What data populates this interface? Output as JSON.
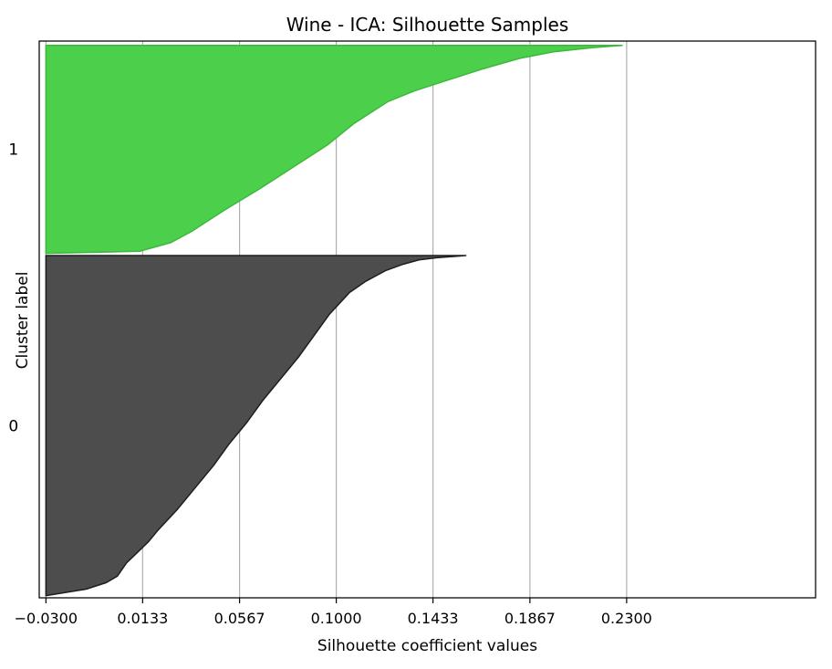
{
  "chart_data": {
    "type": "area",
    "title": "Wine - ICA: Silhouette Samples",
    "xlabel": "Silhouette coefficient values",
    "ylabel": "Cluster label",
    "xlim": [
      -0.033,
      0.3146
    ],
    "ylim": [
      0,
      257
    ],
    "xticks": [
      "−0.0300",
      "0.0133",
      "0.0567",
      "0.1000",
      "0.1433",
      "0.1867",
      "0.2300"
    ],
    "xtick_values": [
      -0.03,
      0.0133,
      0.0567,
      0.1,
      0.1433,
      0.1867,
      0.23
    ],
    "grid": "x",
    "colors": {
      "cluster_0": "#4d4d4d",
      "cluster_1": "#4cd04c",
      "grid": "#b0b0b0"
    },
    "clusters": [
      {
        "label": "0",
        "sample_count": 158,
        "y_range": [
          1,
          158
        ],
        "silhouette_curve": [
          [
            0,
            -0.03
          ],
          [
            3,
            -0.012
          ],
          [
            6,
            -0.003
          ],
          [
            9,
            0.002
          ],
          [
            15,
            0.006
          ],
          [
            20,
            0.011
          ],
          [
            25,
            0.016
          ],
          [
            30,
            0.02
          ],
          [
            40,
            0.029
          ],
          [
            50,
            0.037
          ],
          [
            60,
            0.045
          ],
          [
            70,
            0.052
          ],
          [
            80,
            0.06
          ],
          [
            90,
            0.067
          ],
          [
            100,
            0.075
          ],
          [
            110,
            0.083
          ],
          [
            120,
            0.09
          ],
          [
            130,
            0.097
          ],
          [
            140,
            0.106
          ],
          [
            145,
            0.113
          ],
          [
            150,
            0.122
          ],
          [
            153,
            0.13
          ],
          [
            155,
            0.137
          ],
          [
            156,
            0.145
          ],
          [
            157,
            0.158
          ]
        ]
      },
      {
        "label": "1",
        "sample_count": 96,
        "y_range": [
          159,
          255
        ],
        "silhouette_curve": [
          [
            0,
            -0.03
          ],
          [
            1,
            0.012
          ],
          [
            3,
            0.019
          ],
          [
            5,
            0.026
          ],
          [
            10,
            0.035
          ],
          [
            20,
            0.05
          ],
          [
            30,
            0.066
          ],
          [
            40,
            0.081
          ],
          [
            50,
            0.096
          ],
          [
            60,
            0.108
          ],
          [
            70,
            0.123
          ],
          [
            75,
            0.135
          ],
          [
            80,
            0.15
          ],
          [
            85,
            0.165
          ],
          [
            90,
            0.182
          ],
          [
            93,
            0.197
          ],
          [
            95,
            0.215
          ],
          [
            96,
            0.228
          ]
        ]
      }
    ]
  }
}
